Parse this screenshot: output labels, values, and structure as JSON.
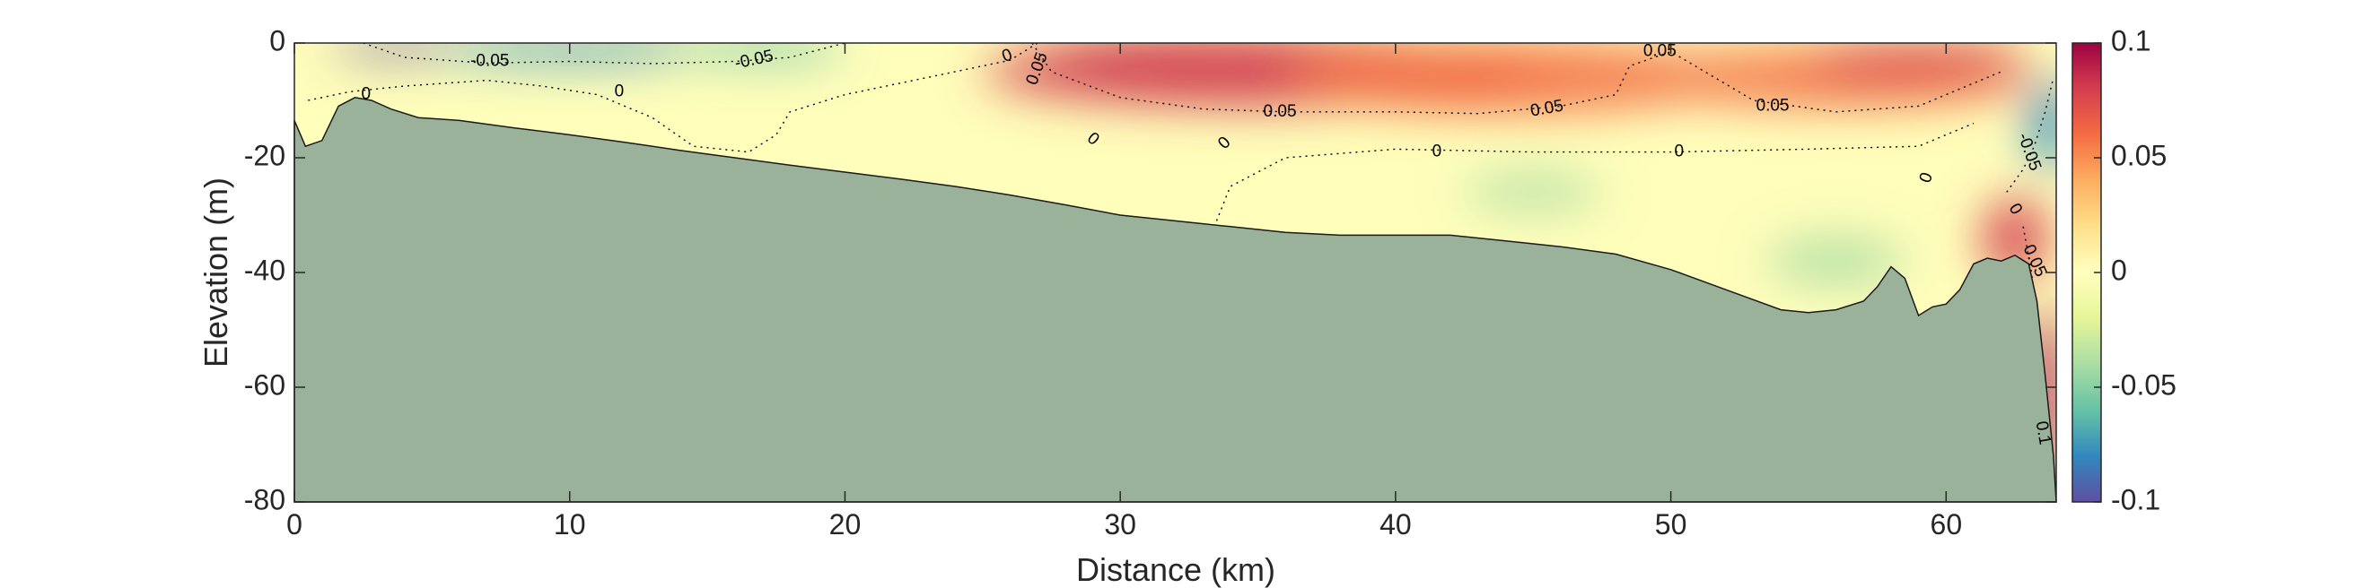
{
  "chart_data": {
    "type": "heatmap",
    "title": "",
    "xlabel": "Distance (km)",
    "ylabel": "Elevation (m)",
    "xlim": [
      0,
      64
    ],
    "ylim": [
      -80,
      0
    ],
    "x_ticks": [
      0,
      10,
      20,
      30,
      40,
      50,
      60
    ],
    "y_ticks": [
      0,
      -20,
      -40,
      -60,
      -80
    ],
    "colorbar": {
      "range": [
        -0.1,
        0.1
      ],
      "ticks": [
        0.1,
        0.05,
        0,
        -0.05,
        -0.1
      ],
      "tick_labels": [
        "0.1",
        "0.05",
        "0",
        "-0.05",
        "-0.1"
      ],
      "colormap": "spectral-reversed",
      "colors": [
        "#5e4fa2",
        "#3288bd",
        "#66c2a5",
        "#abdda4",
        "#e6f598",
        "#ffffbf",
        "#fee08b",
        "#fdae61",
        "#f46d43",
        "#d53e4f",
        "#9e0142"
      ]
    },
    "bathymetry_color": "#9ab29a",
    "bathymetry": {
      "x": [
        0,
        0.4,
        1,
        1.6,
        2.2,
        2.8,
        3.5,
        4.5,
        6,
        8,
        10,
        12,
        14,
        16,
        18,
        20,
        22,
        24,
        26,
        28,
        30,
        32,
        34,
        36,
        38,
        40,
        42,
        44,
        46,
        48,
        50,
        52,
        54,
        55,
        56,
        57,
        57.5,
        58,
        58.5,
        59,
        59.5,
        60,
        60.5,
        61,
        61.5,
        62,
        62.5,
        63,
        63.3,
        63.6,
        63.9,
        64
      ],
      "y": [
        -13.5,
        -18,
        -17,
        -11,
        -9.5,
        -10,
        -11.5,
        -13,
        -13.5,
        -14.8,
        -16,
        -17.3,
        -18.7,
        -20,
        -21.3,
        -22.5,
        -23.7,
        -25,
        -26.5,
        -28.2,
        -30,
        -31,
        -32,
        -33,
        -33.5,
        -33.5,
        -33.5,
        -34.5,
        -35.5,
        -36.8,
        -39.5,
        -43,
        -46.5,
        -47,
        -46.5,
        -45,
        -42.5,
        -39,
        -41,
        -47.5,
        -46,
        -45.5,
        -43,
        -38.5,
        -37.5,
        -38,
        -37,
        -38.5,
        -45,
        -58,
        -72,
        -80
      ]
    },
    "colored_regions": [
      {
        "x": 3.8,
        "y": -0.8,
        "rx": 2.5,
        "ry": 1.5,
        "value": -0.1
      },
      {
        "x": 10,
        "y": -1,
        "rx": 5,
        "ry": 2,
        "value": -0.08
      },
      {
        "x": 17,
        "y": -1,
        "rx": 3,
        "ry": 2,
        "value": -0.07
      },
      {
        "x": 32,
        "y": -2.5,
        "rx": 5,
        "ry": 3.5,
        "value": 0.1
      },
      {
        "x": 35,
        "y": -5,
        "rx": 10,
        "ry": 6,
        "value": 0.08
      },
      {
        "x": 44,
        "y": -6,
        "rx": 8,
        "ry": 6,
        "value": 0.06
      },
      {
        "x": 56,
        "y": -6,
        "rx": 7,
        "ry": 5,
        "value": 0.06
      },
      {
        "x": 59,
        "y": -3,
        "rx": 4,
        "ry": 3,
        "value": 0.07
      },
      {
        "x": 45,
        "y": -26,
        "rx": 2.5,
        "ry": 3,
        "value": -0.035
      },
      {
        "x": 56,
        "y": -38,
        "rx": 2.5,
        "ry": 4,
        "value": -0.04
      },
      {
        "x": 63.8,
        "y": -14,
        "rx": 0.8,
        "ry": 8,
        "value": -0.08
      },
      {
        "x": 62.5,
        "y": -34,
        "rx": 1.2,
        "ry": 7,
        "value": 0.08
      },
      {
        "x": 63.6,
        "y": -62,
        "rx": 0.6,
        "ry": 16,
        "value": 0.1
      }
    ],
    "contour_labels": [
      {
        "text": "-0.05",
        "x": 7.1,
        "y": -3.2,
        "angle": 0
      },
      {
        "text": "-0.05",
        "x": 16.7,
        "y": -3,
        "angle": -12
      },
      {
        "text": "0",
        "x": 2.6,
        "y": -9,
        "angle": 0
      },
      {
        "text": "0",
        "x": 11.8,
        "y": -8.5,
        "angle": 0
      },
      {
        "text": "0",
        "x": 29,
        "y": -16.8,
        "angle": 40
      },
      {
        "text": "0",
        "x": 33.8,
        "y": -17.5,
        "angle": -45
      },
      {
        "text": "0",
        "x": 25.9,
        "y": -2.3,
        "angle": -20
      },
      {
        "text": "0.05",
        "x": 27,
        "y": -4.5,
        "angle": -70
      },
      {
        "text": "0.05",
        "x": 35.8,
        "y": -12,
        "angle": 0
      },
      {
        "text": "0.05",
        "x": 45.5,
        "y": -11.5,
        "angle": -10
      },
      {
        "text": "0.05",
        "x": 49.6,
        "y": -1.5,
        "angle": 0
      },
      {
        "text": "0.05",
        "x": 53.7,
        "y": -11,
        "angle": 0
      },
      {
        "text": "0",
        "x": 41.5,
        "y": -19,
        "angle": 0
      },
      {
        "text": "0",
        "x": 50.3,
        "y": -19,
        "angle": 0
      },
      {
        "text": "0",
        "x": 59.3,
        "y": -23.5,
        "angle": -70
      },
      {
        "text": "0",
        "x": 62.5,
        "y": -29,
        "angle": 60
      },
      {
        "text": "-0.05",
        "x": 63,
        "y": -19,
        "angle": 70
      },
      {
        "text": "0.05",
        "x": 63.2,
        "y": -38,
        "angle": 65
      },
      {
        "text": "0.1",
        "x": 63.5,
        "y": -68,
        "angle": 80
      }
    ],
    "contour_lines": [
      {
        "level": -0.05,
        "x": [
          2.5,
          4,
          7,
          10,
          13,
          16,
          18,
          20
        ],
        "y": [
          0,
          -2.5,
          -3.5,
          -3.2,
          -3.6,
          -3.2,
          -2.5,
          0
        ]
      },
      {
        "level": 0,
        "x": [
          0.5,
          2,
          4,
          7,
          9,
          11,
          13,
          14.5,
          16.5,
          17.5,
          18,
          20,
          23,
          26,
          27
        ],
        "y": [
          -10,
          -8.5,
          -7.5,
          -6.5,
          -7.5,
          -9,
          -13,
          -18,
          -19,
          -16,
          -12,
          -9,
          -6,
          -3,
          0
        ]
      },
      {
        "level": 0,
        "x": [
          33.5,
          34,
          36,
          40,
          45,
          50,
          55,
          59,
          61
        ],
        "y": [
          -31,
          -25,
          -20,
          -18.5,
          -19,
          -19,
          -18.5,
          -18,
          -14
        ]
      },
      {
        "level": 0.05,
        "x": [
          26.8,
          27.5,
          30,
          33,
          36,
          40,
          43,
          46,
          48,
          48.5,
          50,
          53,
          56,
          59,
          62
        ],
        "y": [
          0,
          -5,
          -9.5,
          -11.5,
          -12,
          -12,
          -12.3,
          -11,
          -9,
          -4,
          -1.5,
          -10,
          -12,
          -11,
          -5
        ]
      },
      {
        "level": 0,
        "x": [
          62.2,
          62.8,
          63.2,
          63.6,
          63.9
        ],
        "y": [
          -26,
          -22,
          -18,
          -12,
          -6
        ]
      },
      {
        "level": 0.05,
        "x": [
          62.8,
          63.1,
          63.4,
          63.6,
          63.8
        ],
        "y": [
          -32,
          -40,
          -50,
          -60,
          -75
        ]
      }
    ]
  }
}
